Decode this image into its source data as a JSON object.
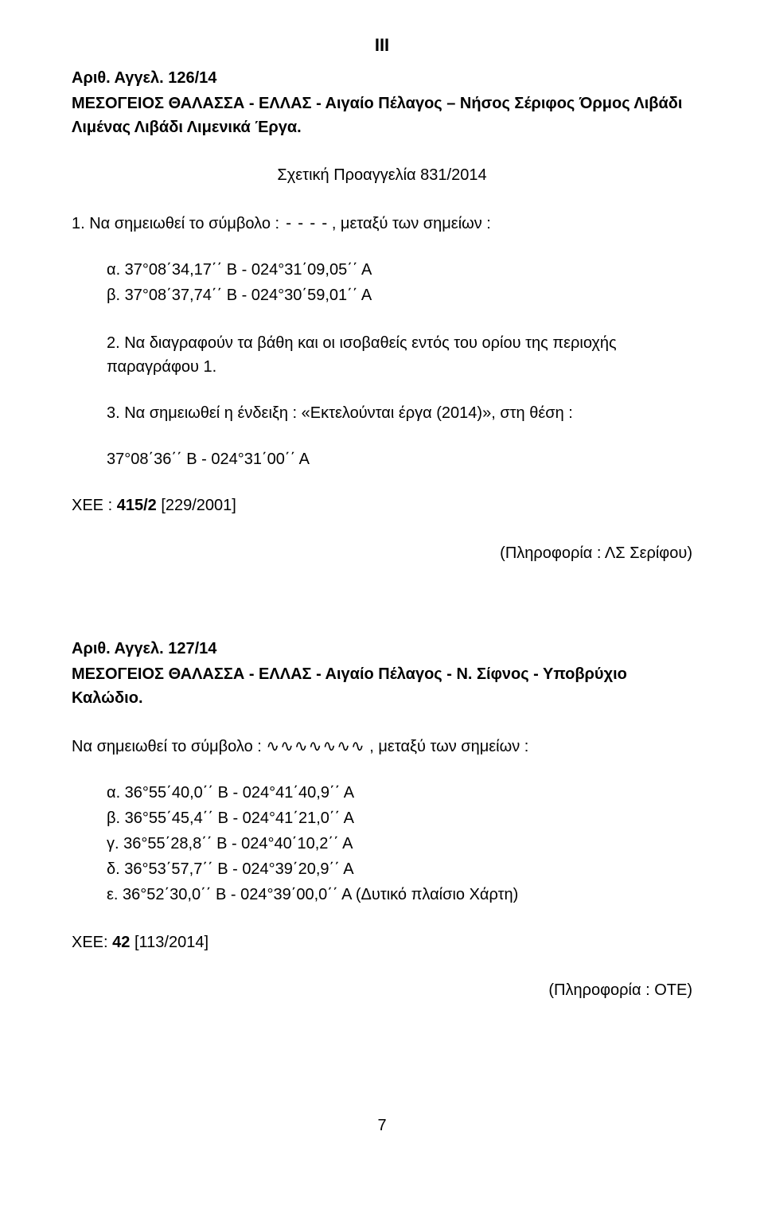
{
  "roman_header": "III",
  "notice126": {
    "title_line": "Αριθ. Αγγελ.   126/14",
    "heading": "ΜΕΣΟΓΕΙΟΣ ΘΑΛΑΣΣΑ  -  ΕΛΛΑΣ  -  Αιγαίο Πέλαγος – Νήσος Σέριφος  Όρμος Λιβάδι  Λιμένας Λιβάδι  Λιμενικά Έργα.",
    "related": "Σχετική Προαγγελία 831/2014",
    "para1_prefix": "1. Να σημειωθεί το σύμβολο :   ",
    "para1_symbol": "----",
    "para1_suffix": ", μεταξύ των σημείων :",
    "coord_a": "α.    37°08΄34,17΄΄ Β      -    024°31΄09,05΄΄ Α",
    "coord_b": "β.    37°08΄37,74΄΄ Β      -    024°30΄59,01΄΄ Α",
    "para2": "2. Να διαγραφούν τα βάθη και οι ισοβαθείς εντός του ορίου της περιοχής παραγράφου 1.",
    "para3": "3. Να σημειωθεί η ένδειξη : «Εκτελούνται έργα (2014)», στη θέση :",
    "coord_3": "37°08΄36΄΄ Β        -        024°31΄00΄΄ Α",
    "ref_prefix": "ΧΕΕ : ",
    "ref_bold": "415/2",
    "ref_suffix": " [229/2001]",
    "info": "(Πληροφορία : ΛΣ Σερίφου)"
  },
  "notice127": {
    "title_line": "Αριθ. Αγγελ.   127/14",
    "heading": "ΜΕΣΟΓΕΙΟΣ ΘΑΛΑΣΣΑ  -  ΕΛΛΑΣ  -  Αιγαίο Πέλαγος  -  Ν. Σίφνος - Υποβρύχιο Καλώδιο.",
    "para1_prefix": "Να σημειωθεί το σύμβολο :     ",
    "para1_symbol": "∿∿∿∿∿∿∿",
    "para1_suffix": " , μεταξύ των σημείων :",
    "coord_a": "α.    36°55΄40,0΄΄ Β       -     024°41΄40,9΄΄ Α",
    "coord_b": "β.    36°55΄45,4΄΄ Β       -     024°41΄21,0΄΄ Α",
    "coord_c": "γ.    36°55΄28,8΄΄ Β       -     024°40΄10,2΄΄ Α",
    "coord_d": "δ.    36°53΄57,7΄΄ Β       -     024°39΄20,9΄΄ Α",
    "coord_e": "ε.    36°52΄30,0΄΄ Β       -     024°39΄00,0΄΄ Α (Δυτικό πλαίσιο Χάρτη)",
    "ref_prefix": "ΧΕΕ: ",
    "ref_bold": "42",
    "ref_suffix": "  [113/2014]",
    "info": "(Πληροφορία : ΟΤΕ)"
  },
  "page_number": "7"
}
